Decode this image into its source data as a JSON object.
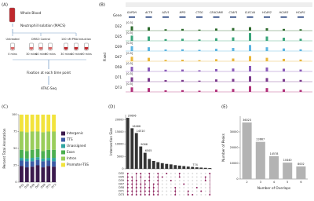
{
  "panel_a": {
    "label": "(A)",
    "source": "Whole Blood",
    "isolation": "Neutrophil Isolation (MACS)",
    "groups": [
      {
        "name": "Untreated",
        "times": [
          "0 mins"
        ]
      },
      {
        "name": "DMSO Control",
        "times": [
          "30 mins",
          "60 mins",
          "90 mins"
        ]
      },
      {
        "name": "100 nM PMA Induction",
        "times": [
          "30 mins",
          "60 mins",
          "90 mins"
        ]
      }
    ],
    "fixation": "Fixation at each time point",
    "assay": "ATAC-Seq"
  },
  "panel_b": {
    "label": "(B)",
    "gene_row": "Gene",
    "group_label": "Fixed",
    "range_label": "[0-5]",
    "ylim": [
      0,
      5
    ],
    "genes": [
      "GAPDH",
      "ACTB",
      "AZU1",
      "MPO",
      "CTSG",
      "CEACAM8",
      "C3AP1",
      "CLEC4A",
      "HCAR2",
      "HCAR3",
      "HCAR1"
    ],
    "tracks": [
      {
        "name": "D32",
        "color": "#2d6a2d",
        "values": [
          2.5,
          2,
          0.8,
          1,
          0.6,
          1.2,
          1.5,
          2,
          1.4,
          1,
          0.8
        ]
      },
      {
        "name": "D35",
        "color": "#3aa57a",
        "values": [
          3,
          2.5,
          1,
          1.2,
          0.8,
          1.5,
          2,
          4.5,
          2.5,
          1.8,
          1.2
        ]
      },
      {
        "name": "D39",
        "color": "#5ab4e0",
        "values": [
          2.8,
          2.2,
          0.9,
          1,
          0.7,
          1.3,
          1.8,
          3.5,
          2.2,
          1.5,
          1
        ]
      },
      {
        "name": "D47",
        "color": "#e8b63a",
        "values": [
          2.6,
          2,
          0.8,
          0.9,
          0.6,
          1.2,
          1.6,
          3,
          2,
          1.4,
          1
        ]
      },
      {
        "name": "D58",
        "color": "#8a5ab8",
        "values": [
          2.7,
          2.3,
          1,
          1.1,
          0.7,
          1.4,
          1.7,
          3.2,
          2.3,
          1.6,
          1.1
        ]
      },
      {
        "name": "D71",
        "color": "#7b3a8c",
        "values": [
          2.5,
          2.1,
          0.9,
          1,
          0.6,
          1.3,
          1.6,
          3.1,
          2.1,
          1.5,
          1
        ]
      },
      {
        "name": "D73",
        "color": "#b0307a",
        "values": [
          2.6,
          2.2,
          0.9,
          1,
          0.7,
          1.3,
          1.7,
          3.3,
          2.2,
          1.5,
          1.1
        ]
      }
    ]
  },
  "chart_data": [
    {
      "type": "stacked-bar",
      "label": "(C)",
      "ylabel": "Percent Total Annotation",
      "categories": [
        "D32",
        "D35",
        "D39",
        "D47",
        "D58",
        "D71",
        "D73"
      ],
      "ylim": [
        0,
        100
      ],
      "yticks": [
        0,
        25,
        50,
        75,
        100
      ],
      "series": [
        {
          "name": "Intergenic",
          "color": "#3b1a4d",
          "values": [
            24,
            22,
            23,
            25,
            22,
            24,
            23
          ]
        },
        {
          "name": "TTS",
          "color": "#3b5ba5",
          "values": [
            8,
            9,
            8,
            8,
            9,
            8,
            8
          ]
        },
        {
          "name": "Unassigned",
          "color": "#2fa4a0",
          "values": [
            4,
            4,
            5,
            4,
            4,
            4,
            5
          ]
        },
        {
          "name": "Exon",
          "color": "#4caf50",
          "values": [
            12,
            11,
            12,
            12,
            11,
            12,
            12
          ]
        },
        {
          "name": "Intron",
          "color": "#9acd5a",
          "values": [
            27,
            28,
            27,
            26,
            28,
            27,
            27
          ]
        },
        {
          "name": "Promoter-TSS",
          "color": "#f2e33c",
          "values": [
            25,
            26,
            25,
            25,
            26,
            25,
            25
          ]
        }
      ]
    },
    {
      "type": "upset",
      "label": "(D)",
      "ylabel": "Intersection Size",
      "color": "#333333",
      "ylim": [
        0,
        22000
      ],
      "yticks": [
        0,
        5000,
        10000,
        15000,
        20000
      ],
      "sets": [
        "D32",
        "D35",
        "D39",
        "D47",
        "D58",
        "D71",
        "D73"
      ],
      "values": [
        20696,
        16466,
        14510,
        9066,
        6505,
        4000,
        3200,
        2700,
        2300,
        2000,
        1800,
        1500,
        1300,
        1100,
        900,
        774,
        600,
        500,
        400,
        300
      ],
      "value_labels": [
        "20696",
        "16466",
        "14510",
        "9066",
        "6505",
        null,
        null,
        null,
        null,
        null,
        null,
        null,
        null,
        null,
        null,
        "774",
        null,
        null,
        null,
        null
      ],
      "memberships": [
        [
          0,
          1,
          2,
          3,
          4,
          5,
          6
        ],
        [
          1,
          2,
          3,
          4,
          5,
          6
        ],
        [
          0,
          2,
          3,
          4,
          5,
          6
        ],
        [
          0,
          1,
          3,
          4,
          5,
          6
        ],
        [
          2,
          3,
          4,
          5,
          6
        ],
        [
          0,
          1,
          2,
          4,
          5,
          6
        ],
        [
          3,
          4,
          5,
          6
        ],
        [
          0,
          1,
          2,
          3,
          5,
          6
        ],
        [
          1
        ],
        [
          0
        ],
        [
          2
        ],
        [
          4,
          5,
          6
        ],
        [
          0,
          1
        ],
        [
          3
        ],
        [
          5,
          6
        ],
        [
          6
        ],
        [
          4
        ],
        [
          5
        ],
        [
          1,
          2
        ],
        [
          0,
          6
        ]
      ]
    },
    {
      "type": "bar",
      "label": "(E)",
      "xlabel": "Number of Overlaps",
      "ylabel": "Number of Peaks",
      "color": "#b3b3b3",
      "categories": [
        "2",
        "3",
        "4",
        "5",
        "6"
      ],
      "values": [
        36023,
        23667,
        14578,
        10440,
        8002
      ],
      "ylim": [
        0,
        40000
      ],
      "yticks": [
        0,
        10000,
        20000,
        30000
      ]
    }
  ]
}
